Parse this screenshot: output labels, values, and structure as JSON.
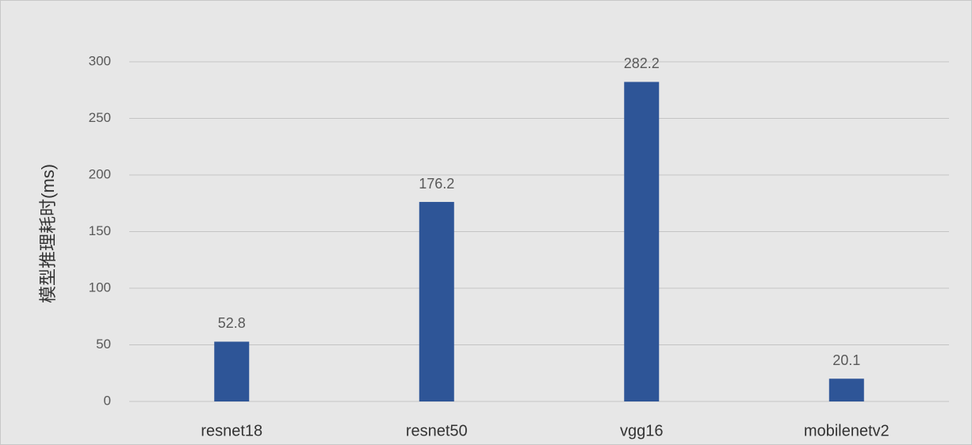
{
  "chart_data": {
    "type": "bar",
    "y_label": "模型推理耗时(ms)",
    "categories": [
      "resnet18",
      "resnet50",
      "vgg16",
      "mobilenetv2"
    ],
    "values": [
      52.8,
      176.2,
      282.2,
      20.1
    ],
    "color": "#2e5597",
    "ylim": [
      0,
      300
    ],
    "yticks": [
      0,
      50,
      100,
      150,
      200,
      250,
      300
    ],
    "grid": true
  }
}
